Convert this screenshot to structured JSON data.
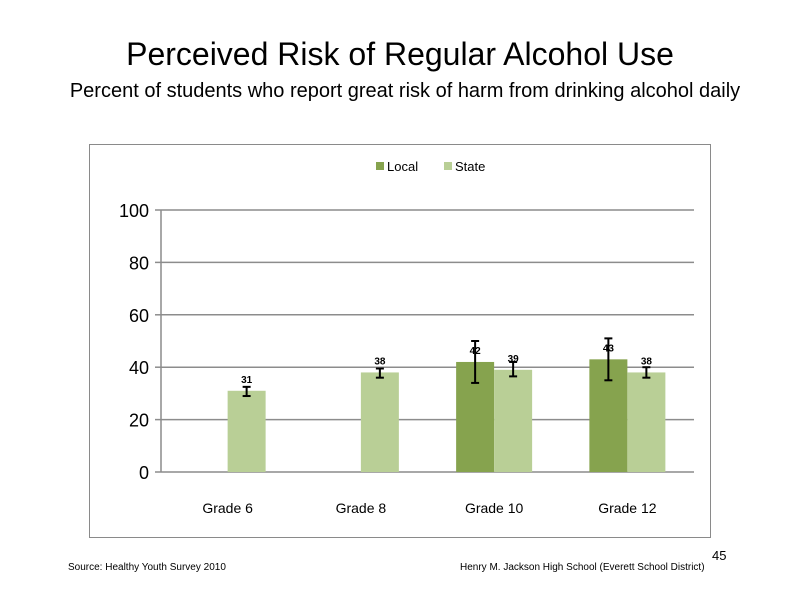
{
  "slide": {
    "title": "Perceived  Risk of Regular  Alcohol  Use",
    "subtitle": "Percent of students  who report great risk of harm  from drinking  alcohol daily",
    "source": "Source: Healthy Youth Survey 2010",
    "school": "Henry M.  Jackson High School (Everett School District)",
    "page_number": "45"
  },
  "chart_data": {
    "type": "bar",
    "title": "",
    "xlabel": "",
    "ylabel": "",
    "ylim": [
      0,
      100
    ],
    "yticks": [
      0,
      20,
      40,
      60,
      80,
      100
    ],
    "grid": true,
    "legend_position": "top",
    "categories": [
      "Grade 6",
      "Grade 8",
      "Grade 10",
      "Grade 12"
    ],
    "series": [
      {
        "name": "Local",
        "color": "#86a34e",
        "values": [
          null,
          null,
          42,
          43
        ],
        "labels": [
          null,
          null,
          "42",
          "43"
        ],
        "error_low": [
          null,
          null,
          34,
          35
        ],
        "error_high": [
          null,
          null,
          50,
          51
        ]
      },
      {
        "name": "State",
        "color": "#b9cf96",
        "values": [
          31,
          38,
          39,
          38
        ],
        "labels": [
          "31",
          "38",
          "39",
          "38"
        ],
        "error_low": [
          29,
          36,
          36.5,
          36
        ],
        "error_high": [
          32.5,
          39.5,
          42,
          40
        ]
      }
    ]
  }
}
